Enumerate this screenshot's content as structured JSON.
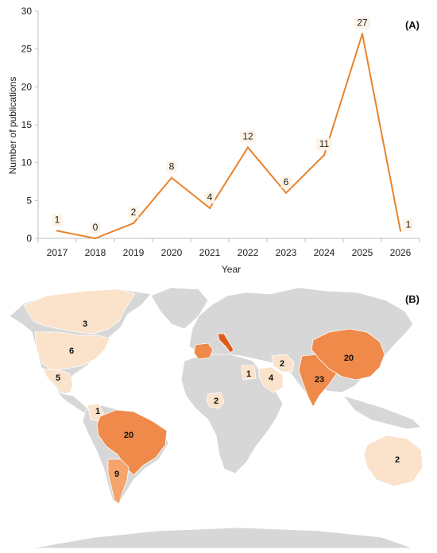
{
  "panel_a": {
    "label": "(A)",
    "chart_data": {
      "type": "line",
      "categories": [
        "2017",
        "2018",
        "2019",
        "2020",
        "2021",
        "2022",
        "2023",
        "2024",
        "2025",
        "2026"
      ],
      "values": [
        1,
        0,
        2,
        8,
        4,
        12,
        6,
        11,
        27,
        1
      ],
      "xlabel": "Year",
      "ylabel": "Number of publications",
      "ylim": [
        0,
        30
      ],
      "yticks": [
        0,
        5,
        10,
        15,
        20,
        25,
        30
      ],
      "grid": false,
      "data_labels": true,
      "line_color": "#e8822a",
      "label_bg_color": "#fdf3e6"
    }
  },
  "panel_b": {
    "label": "(B)",
    "type": "choropleth-world-map",
    "scale_colors": {
      "none": "#d7d7d7",
      "low": "#fbe2cb",
      "mid": "#f4a46c",
      "high": "#ef8a4a",
      "max": "#e0591b"
    },
    "regions": [
      {
        "name": "Canada",
        "value": "3"
      },
      {
        "name": "United States",
        "value": "6"
      },
      {
        "name": "Mexico",
        "value": "5"
      },
      {
        "name": "Colombia",
        "value": "1"
      },
      {
        "name": "Brazil",
        "value": "20"
      },
      {
        "name": "Argentina",
        "value": "9"
      },
      {
        "name": "Nigeria",
        "value": "2"
      },
      {
        "name": "Egypt",
        "value": "1"
      },
      {
        "name": "Saudi Arabia",
        "value": "4"
      },
      {
        "name": "Iran",
        "value": "2"
      },
      {
        "name": "India",
        "value": "23"
      },
      {
        "name": "China",
        "value": "20"
      },
      {
        "name": "Australia",
        "value": "2"
      }
    ]
  }
}
